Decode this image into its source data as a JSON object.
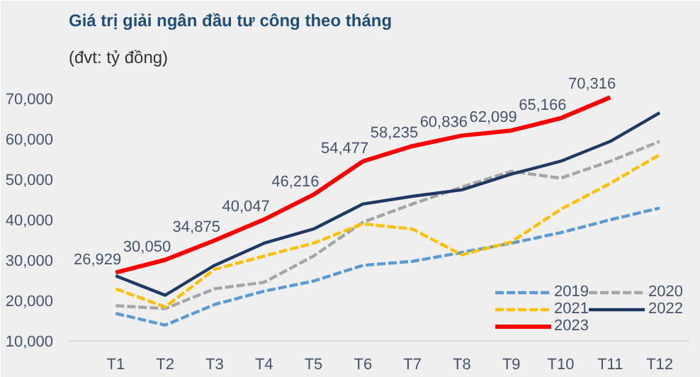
{
  "chart_data": {
    "type": "line",
    "title": "Giá trị giải ngân đầu tư công theo tháng",
    "subtitle": "(đvt: tỷ đồng)",
    "categories": [
      "T1",
      "T2",
      "T3",
      "T4",
      "T5",
      "T6",
      "T7",
      "T8",
      "T9",
      "T10",
      "T11",
      "T12"
    ],
    "series": [
      {
        "name": "2019",
        "color": "#5b9bd5",
        "line_style": "dashed",
        "values": [
          16800,
          13900,
          19000,
          22300,
          24800,
          28700,
          29700,
          31900,
          34200,
          36800,
          40000,
          42900
        ]
      },
      {
        "name": "2020",
        "color": "#a5a5a5",
        "line_style": "dashed",
        "values": [
          18700,
          18000,
          22900,
          24500,
          31000,
          39400,
          43900,
          48100,
          52000,
          50300,
          54500,
          59400
        ]
      },
      {
        "name": "2021",
        "color": "#ffc000",
        "line_style": "dashed",
        "values": [
          22900,
          18400,
          27700,
          31000,
          34200,
          39000,
          37700,
          31300,
          34500,
          42600,
          49000,
          56100
        ]
      },
      {
        "name": "2022",
        "color": "#1f3864",
        "line_style": "solid",
        "values": [
          26100,
          21300,
          28700,
          34200,
          37700,
          43900,
          45800,
          47400,
          51300,
          54500,
          59400,
          66500
        ]
      },
      {
        "name": "2023",
        "color": "#ff0000",
        "line_style": "solid",
        "values": [
          26929,
          30050,
          34875,
          40047,
          46216,
          54477,
          58235,
          60836,
          62099,
          65166,
          70316,
          null
        ],
        "value_labels": [
          "26,929",
          "30,050",
          "34,875",
          "40,047",
          "46,216",
          "54,477",
          "58,235",
          "60,836",
          "62,099",
          "65,166",
          "70,316",
          null
        ]
      }
    ],
    "ylim": [
      10000,
      76000
    ],
    "yticks": [
      {
        "value": 10000,
        "label": "10,000"
      },
      {
        "value": 20000,
        "label": "20,000"
      },
      {
        "value": 30000,
        "label": "30,000"
      },
      {
        "value": 40000,
        "label": "40,000"
      },
      {
        "value": 50000,
        "label": "50,000"
      },
      {
        "value": 60000,
        "label": "60,000"
      },
      {
        "value": 70000,
        "label": "70,000"
      }
    ],
    "grid": false,
    "legend": "bottom right",
    "marker": "none"
  }
}
